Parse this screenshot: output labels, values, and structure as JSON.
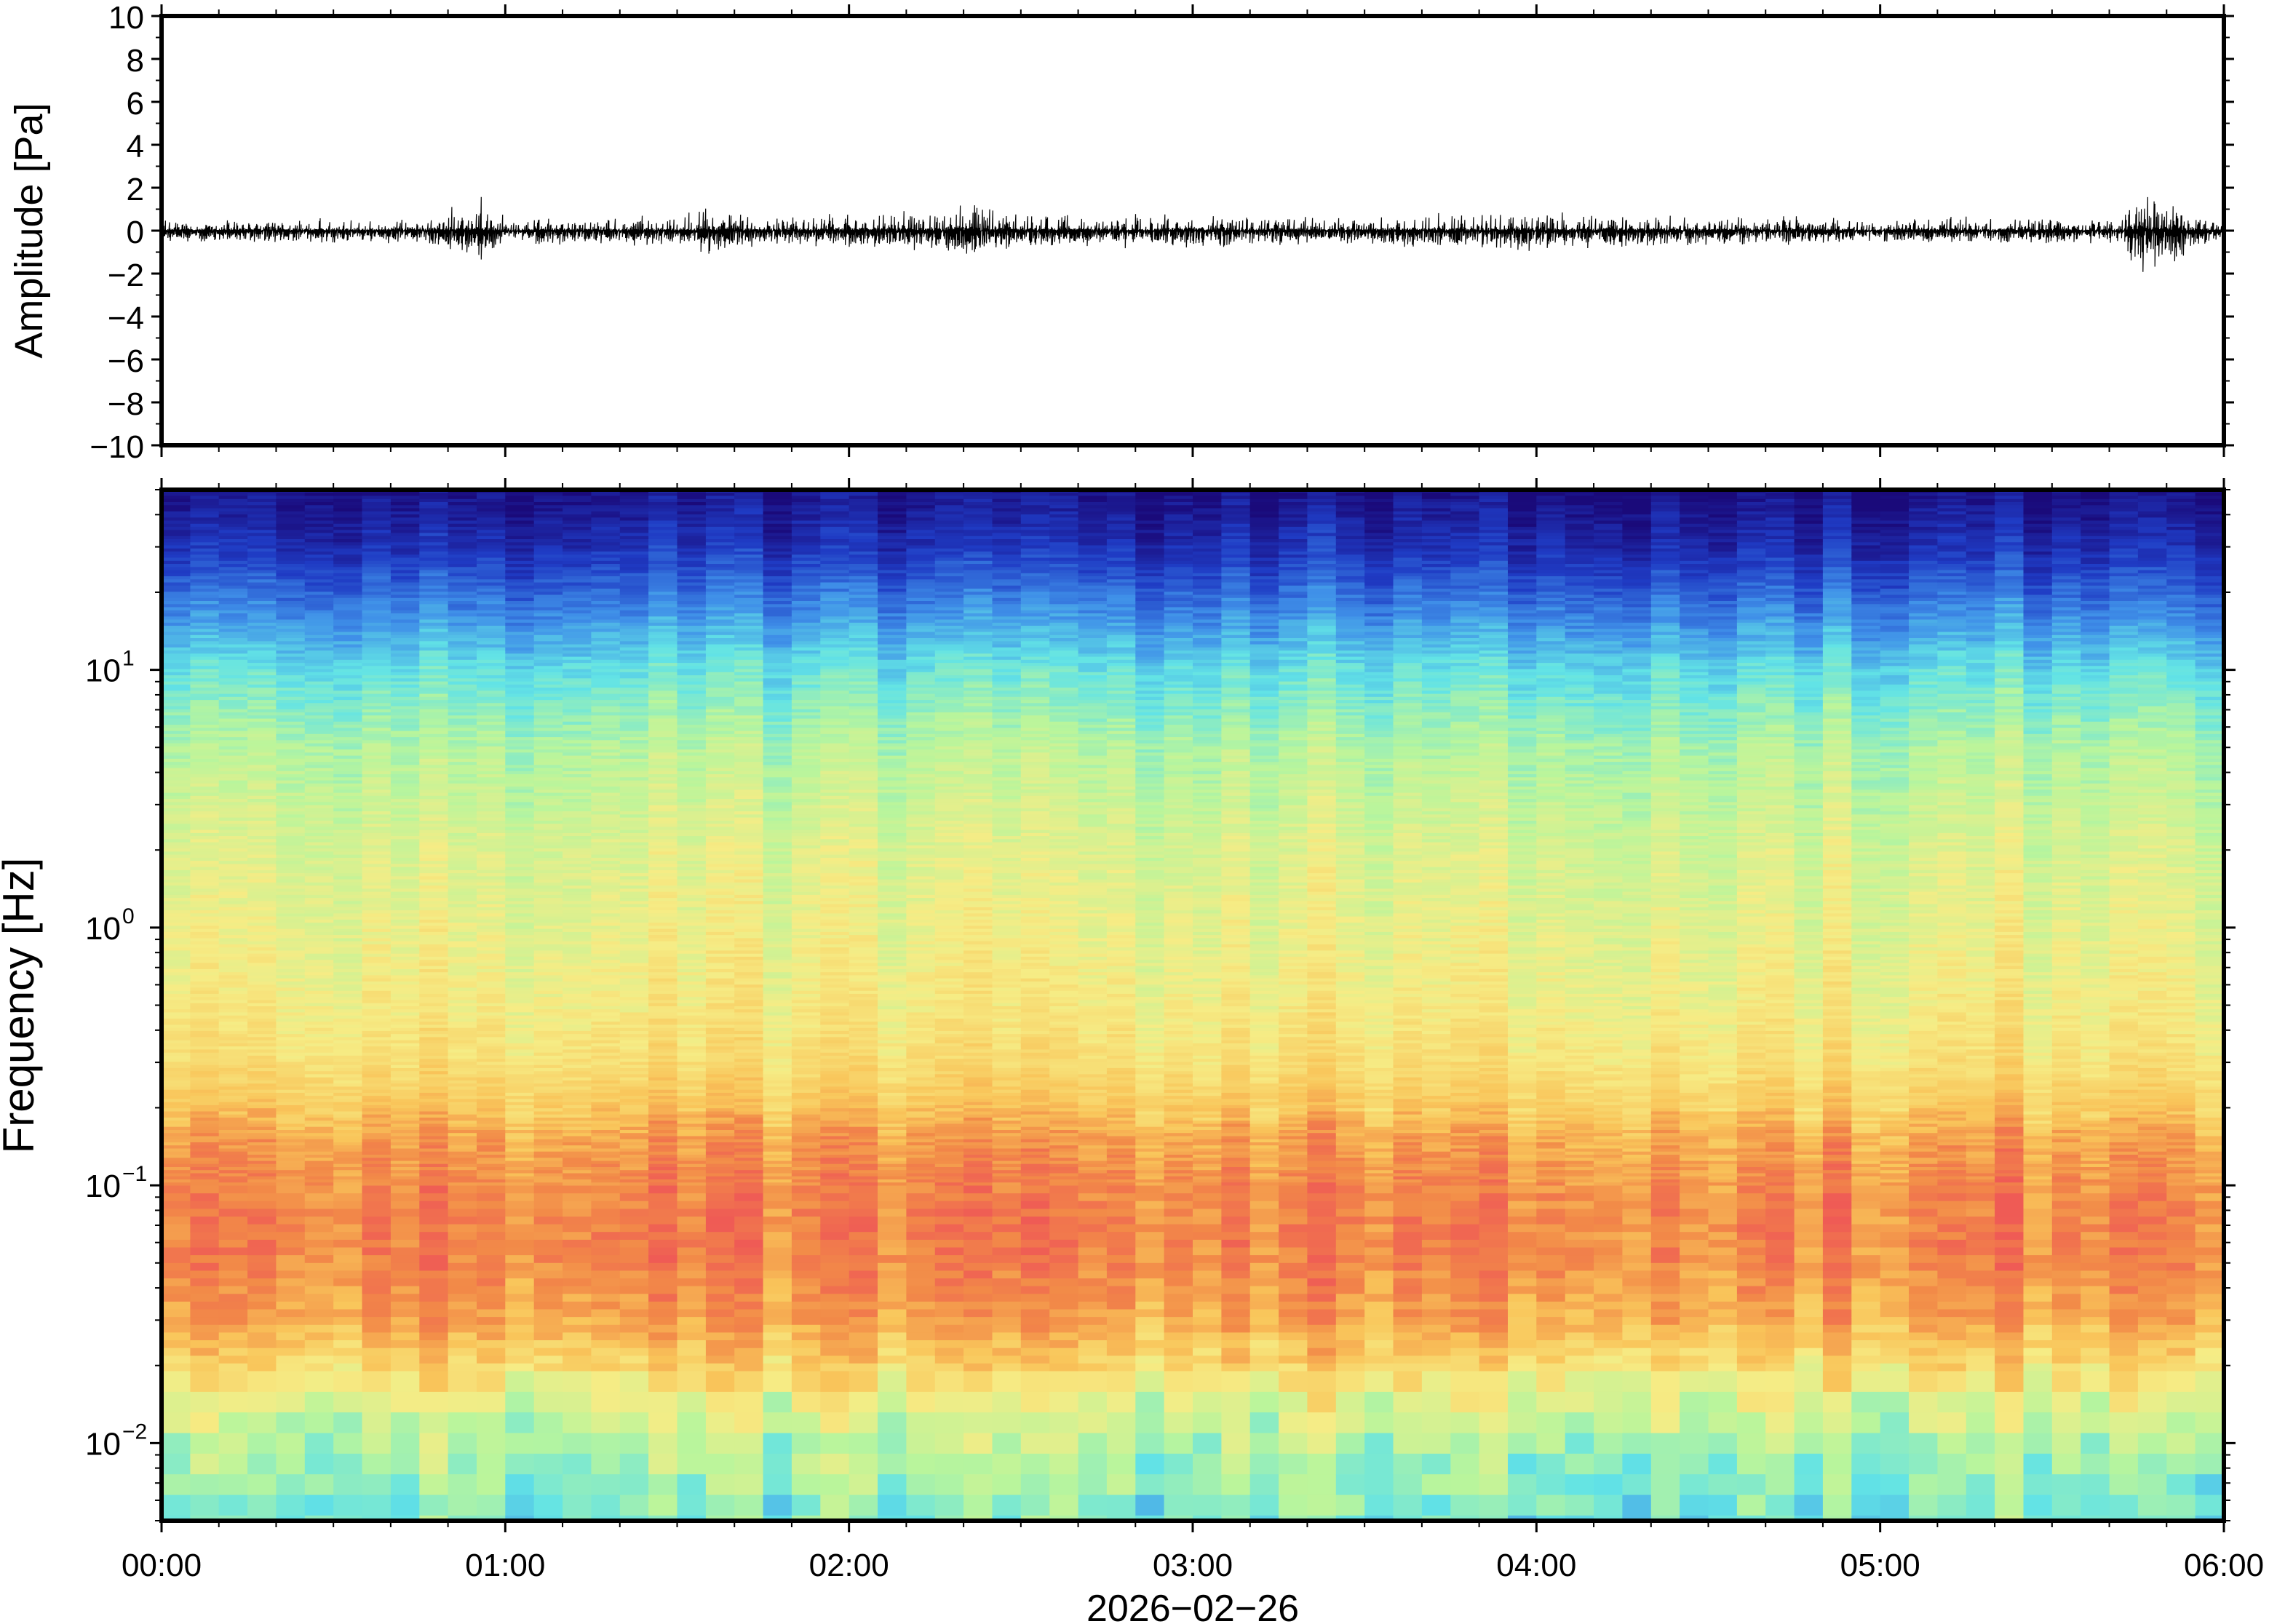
{
  "chart_data": [
    {
      "type": "line",
      "panel": "waveform",
      "ylabel": "Amplitude [Pa]",
      "ylim": [
        -10,
        10
      ],
      "yticks": [
        "10",
        "8",
        "6",
        "4",
        "2",
        "0",
        "−2",
        "−4",
        "−6",
        "−8",
        "−10"
      ],
      "ytick_values": [
        10,
        8,
        6,
        4,
        2,
        0,
        -2,
        -4,
        -6,
        -8,
        -10
      ],
      "xlim_hours": [
        0,
        6
      ],
      "series": [
        {
          "x_hours": [
            0,
            0.25,
            0.5,
            0.75,
            0.93,
            1.0,
            1.25,
            1.5,
            1.6,
            1.75,
            2.0,
            2.25,
            2.35,
            2.5,
            2.75,
            3.0,
            3.25,
            3.5,
            3.75,
            3.95,
            4.0,
            4.25,
            4.5,
            4.75,
            5.0,
            5.25,
            5.5,
            5.7,
            5.75,
            6.0
          ],
          "envelope": [
            0.6,
            0.6,
            0.6,
            0.6,
            1.6,
            0.7,
            0.7,
            0.8,
            1.3,
            0.7,
            0.9,
            1.0,
            1.5,
            0.9,
            0.8,
            0.9,
            0.7,
            0.7,
            0.9,
            1.1,
            1.0,
            0.8,
            0.7,
            0.7,
            0.6,
            0.7,
            0.7,
            0.6,
            2.2,
            0.6
          ]
        }
      ]
    },
    {
      "type": "heatmap",
      "panel": "spectrogram",
      "ylabel": "Frequency [Hz]",
      "yscale": "log",
      "ylim": [
        0.005,
        50
      ],
      "yticks": [
        {
          "value": 10,
          "base": "10",
          "exp": "1"
        },
        {
          "value": 1,
          "base": "10",
          "exp": "0"
        },
        {
          "value": 0.1,
          "base": "10",
          "exp": "−1"
        },
        {
          "value": 0.01,
          "base": "10",
          "exp": "−2"
        }
      ],
      "xlim_hours": [
        0,
        6
      ],
      "xticks": [
        "00:00",
        "01:00",
        "02:00",
        "03:00",
        "04:00",
        "05:00",
        "06:00"
      ],
      "xlabel": "2026−02−26",
      "colormap": [
        "#1a0a7a",
        "#1f3bc4",
        "#3f8fe8",
        "#62e3e6",
        "#b9f59c",
        "#f6ec85",
        "#f9c55a",
        "#f28a48",
        "#ef5b55"
      ],
      "psd_profile": {
        "freq_hz": [
          50,
          30,
          20,
          10,
          5,
          2,
          1,
          0.5,
          0.3,
          0.2,
          0.15,
          0.1,
          0.07,
          0.05,
          0.03,
          0.02,
          0.015,
          0.01,
          0.005
        ],
        "level": [
          0.02,
          0.1,
          0.2,
          0.38,
          0.5,
          0.57,
          0.6,
          0.63,
          0.67,
          0.74,
          0.83,
          0.88,
          0.9,
          0.89,
          0.82,
          0.7,
          0.6,
          0.5,
          0.42
        ]
      }
    }
  ]
}
